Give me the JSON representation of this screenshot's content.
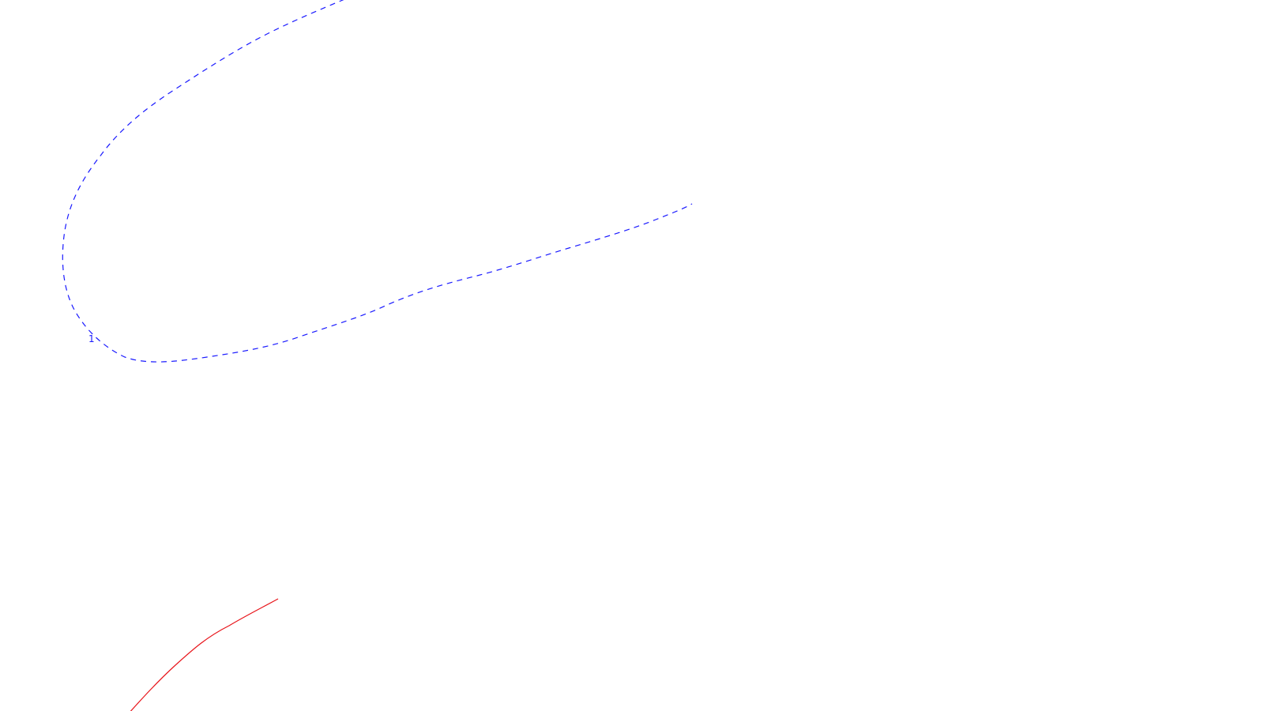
{
  "drawing": {
    "curves": [
      {
        "id": "blue-dashed-curve",
        "style": "dashed",
        "color": "#1a1aff",
        "label": "1"
      },
      {
        "id": "red-solid-curve",
        "style": "solid",
        "color": "#e8141a"
      }
    ]
  }
}
